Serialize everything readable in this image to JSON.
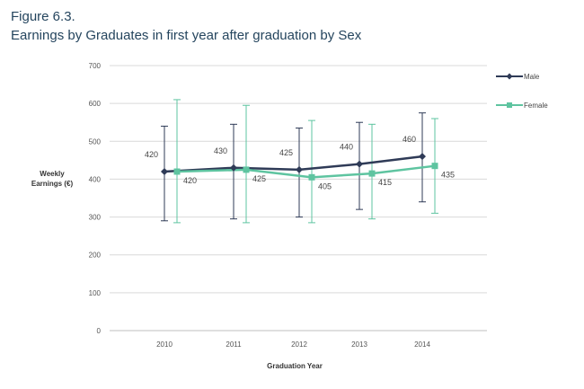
{
  "figure_label": "Figure 6.3.",
  "colors": {
    "male": "#2f3b57",
    "female": "#5ec4a0",
    "grid": "#d9d9d9",
    "text": "#25455e"
  },
  "chart_data": {
    "type": "line",
    "title": "Earnings by Graduates in first year after graduation by Sex",
    "xlabel": "Graduation Year",
    "ylabel_lines": [
      "Weekly",
      "Earnings (€)"
    ],
    "categories": [
      "2010",
      "2011",
      "2012",
      "2013",
      "2014"
    ],
    "ylim": [
      0,
      700
    ],
    "yticks": [
      "0",
      "100",
      "200",
      "300",
      "400",
      "500",
      "600",
      "700"
    ],
    "grid": true,
    "legend_position": "right",
    "error_bars": true,
    "series": [
      {
        "name": "Male",
        "values": [
          420,
          430,
          425,
          440,
          460
        ],
        "low": [
          290,
          295,
          300,
          320,
          340
        ],
        "high": [
          540,
          545,
          535,
          550,
          575
        ],
        "labels": [
          "420",
          "430",
          "425",
          "440",
          "460"
        ]
      },
      {
        "name": "Female",
        "values": [
          420,
          425,
          405,
          415,
          435
        ],
        "low": [
          285,
          285,
          285,
          295,
          310
        ],
        "high": [
          610,
          595,
          555,
          545,
          560
        ],
        "labels": [
          "420",
          "425",
          "405",
          "415",
          "435"
        ]
      }
    ]
  }
}
